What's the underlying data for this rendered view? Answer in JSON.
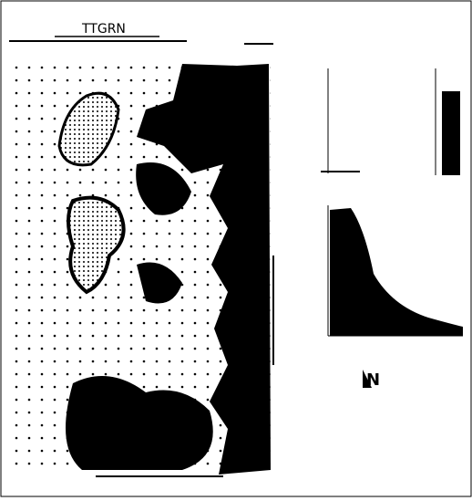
{
  "header": {
    "title": "TTGRN"
  },
  "north_arrow": {
    "label": "N"
  }
}
